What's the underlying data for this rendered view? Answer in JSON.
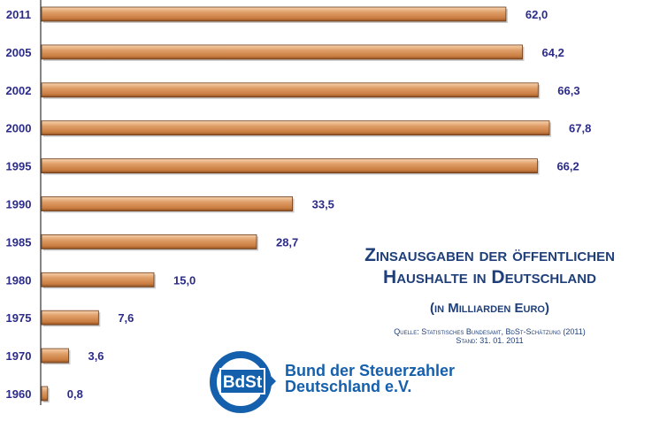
{
  "chart_data": {
    "type": "bar",
    "orientation": "horizontal",
    "title": "Zinsausgaben der öffentlichen Haushalte in Deutschland",
    "subtitle": "(in Milliarden Euro)",
    "categories": [
      "2011",
      "2005",
      "2002",
      "2000",
      "1995",
      "1990",
      "1985",
      "1980",
      "1975",
      "1970",
      "1960"
    ],
    "values": [
      62.0,
      64.2,
      66.3,
      67.8,
      66.2,
      33.5,
      28.7,
      15.0,
      7.6,
      3.6,
      0.8
    ],
    "data_labels": [
      "62,0",
      "64,2",
      "66,3",
      "67,8",
      "66,2",
      "33,5",
      "28,7",
      "15,0",
      "7,6",
      "3,6",
      "0,8"
    ],
    "xlim": [
      0,
      75
    ],
    "grid": false,
    "bar_color": "#d68f55",
    "label_color": "#2b2b8a"
  },
  "source": "Quelle: Statistisches Bundesamt,  BdSt-Schätzung (2011)",
  "stand": "Stand: 31. 01. 2011",
  "logo": {
    "text": "BdSt",
    "org_line1": "Bund der Steuerzahler",
    "org_line2": "Deutschland e.V.",
    "color": "#1560ad"
  }
}
